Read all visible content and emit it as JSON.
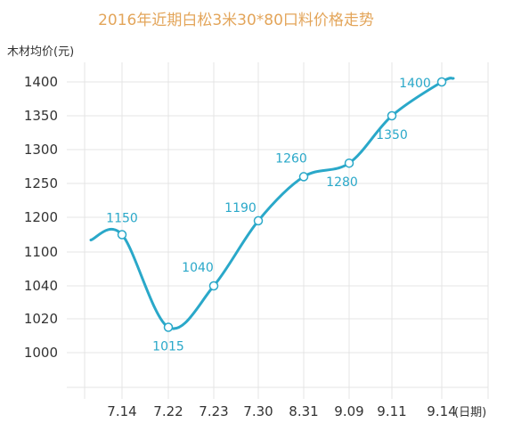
{
  "colors": {
    "line": "#2aa8c9",
    "title": "#e3a55a",
    "grid": "#e4e4e4",
    "text": "#333333",
    "label": "#2aa8c9"
  },
  "chart_data": {
    "type": "line",
    "title": "2016年近期白松3米30*80口料价格走势",
    "ylabel": "木材均价(元)",
    "xunit": "(日期)",
    "grid": true,
    "y_ticks": [
      "1400",
      "1350",
      "1300",
      "1250",
      "1200",
      "1100",
      "1040",
      "1020",
      "1000"
    ],
    "categories": [
      "7.14",
      "7.22",
      "7.23",
      "7.30",
      "8.31",
      "9.09",
      "9.11",
      "9.14"
    ],
    "values": [
      1150,
      1015,
      1040,
      1190,
      1260,
      1280,
      1350,
      1400
    ],
    "data_labels": [
      "1150",
      "1015",
      "1040",
      "1190",
      "1260",
      "1280",
      "1350",
      "1400"
    ]
  }
}
